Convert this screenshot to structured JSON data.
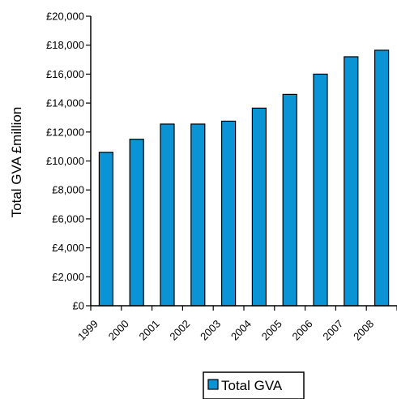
{
  "chart_data": {
    "type": "bar",
    "categories": [
      "1999",
      "2000",
      "2001",
      "2002",
      "2003",
      "2004",
      "2005",
      "2006",
      "2007",
      "2008"
    ],
    "series": [
      {
        "name": "Total GVA",
        "color": "#0a94d6",
        "values": [
          10600,
          11500,
          12550,
          12550,
          12750,
          13650,
          14600,
          16000,
          17200,
          17650
        ]
      }
    ],
    "ylabel": "Total GVA £million",
    "xlabel": "",
    "ylim": [
      0,
      20000
    ],
    "yticks": [
      0,
      2000,
      4000,
      6000,
      8000,
      10000,
      12000,
      14000,
      16000,
      18000,
      20000
    ],
    "ytick_labels": [
      "£0",
      "£2,000",
      "£4,000",
      "£6,000",
      "£8,000",
      "£10,000",
      "£12,000",
      "£14,000",
      "£16,000",
      "£18,000",
      "£20,000"
    ],
    "grid": false,
    "legend": {
      "position": "bottom",
      "label": "Total GVA"
    }
  }
}
